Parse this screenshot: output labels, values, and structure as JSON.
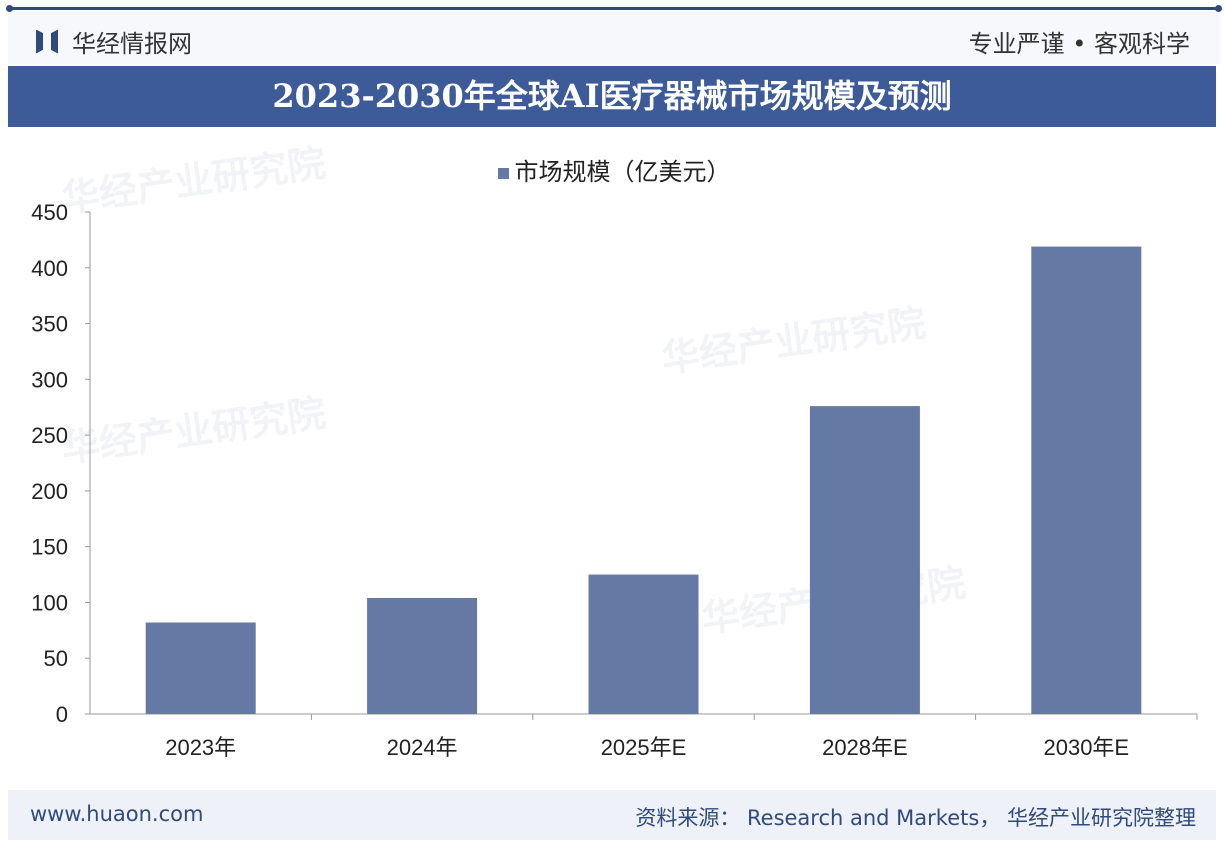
{
  "header": {
    "brand": "华经情报网",
    "slogan": "专业严谨 • 客观科学"
  },
  "footer": {
    "site": "www.huaon.com",
    "source": "资料来源： Research and Markets， 华经产业研究院整理"
  },
  "watermark": "华经产业研究院",
  "colors": {
    "bar": "#6479a3",
    "band": "#3d5a99"
  },
  "chart_data": {
    "type": "bar",
    "title": "2023-2030年全球AI医疗器械市场规模及预测",
    "categories": [
      "2023年",
      "2024年",
      "2025年E",
      "2028年E",
      "2030年E"
    ],
    "series": [
      {
        "name": "市场规模（亿美元）",
        "values": [
          82,
          104,
          125,
          276,
          419
        ]
      }
    ],
    "legend": "top-center",
    "ylim": [
      0,
      450
    ],
    "yticks": [
      0,
      50,
      100,
      150,
      200,
      250,
      300,
      350,
      400,
      450
    ],
    "grid": false
  }
}
